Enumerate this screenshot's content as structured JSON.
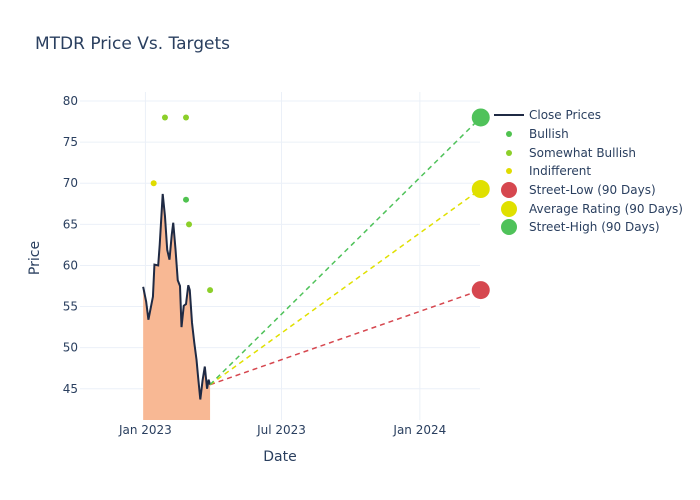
{
  "chart_data": {
    "type": "line",
    "title": "MTDR Price Vs. Targets",
    "xlabel": "Date",
    "ylabel": "Price",
    "ylim": [
      41.2,
      81.1
    ],
    "xlim": [
      "2022-10-06",
      "2024-03-21"
    ],
    "yticks": [
      45,
      50,
      55,
      60,
      65,
      70,
      75,
      80
    ],
    "xticks": [
      {
        "date": "2023-01-01",
        "label": "Jan 2023"
      },
      {
        "date": "2023-07-01",
        "label": "Jul 2023"
      },
      {
        "date": "2024-01-01",
        "label": "Jan 2024"
      }
    ],
    "close_prices": {
      "name": "Close Prices",
      "color": "#1f2a44",
      "fill": "#f8b894",
      "dates": [
        "2022-12-29",
        "2023-01-02",
        "2023-01-05",
        "2023-01-11",
        "2023-01-13",
        "2023-01-18",
        "2023-01-20",
        "2023-01-24",
        "2023-01-27",
        "2023-01-30",
        "2023-02-02",
        "2023-02-05",
        "2023-02-07",
        "2023-02-10",
        "2023-02-13",
        "2023-02-16",
        "2023-02-18",
        "2023-02-21",
        "2023-02-24",
        "2023-02-27",
        "2023-03-01",
        "2023-03-04",
        "2023-03-07",
        "2023-03-10",
        "2023-03-12",
        "2023-03-15",
        "2023-03-18",
        "2023-03-21",
        "2023-03-24",
        "2023-03-26",
        "2023-03-28"
      ],
      "values": [
        57.4,
        55.6,
        53.4,
        56.2,
        60.1,
        60.0,
        62.5,
        68.7,
        66.0,
        61.9,
        60.7,
        63.7,
        65.2,
        62.0,
        58.2,
        57.5,
        52.5,
        55.1,
        55.3,
        57.6,
        57.0,
        53.0,
        50.6,
        48.5,
        46.5,
        43.7,
        46.0,
        47.7,
        45.0,
        46.1,
        45.5
      ]
    },
    "ratings": [
      {
        "name": "Bullish",
        "color": "#4fc24f",
        "points": [
          {
            "date": "2023-02-24",
            "value": 68
          }
        ]
      },
      {
        "name": "Somewhat Bullish",
        "color": "#8ccf2a",
        "points": [
          {
            "date": "2023-01-27",
            "value": 78
          },
          {
            "date": "2023-02-24",
            "value": 78
          },
          {
            "date": "2023-02-28",
            "value": 65
          },
          {
            "date": "2023-03-28",
            "value": 57
          }
        ]
      },
      {
        "name": "Indifferent",
        "color": "#e0dc00",
        "points": [
          {
            "date": "2023-01-12",
            "value": 70
          }
        ]
      }
    ],
    "targets": [
      {
        "name": "Street-Low (90 Days)",
        "color": "#d6474f",
        "date": "2024-03-22",
        "value": 57
      },
      {
        "name": "Average Rating (90 Days)",
        "color": "#e0e000",
        "date": "2024-03-22",
        "value": 69.3
      },
      {
        "name": "Street-High (90 Days)",
        "color": "#4fc25a",
        "date": "2024-03-22",
        "value": 78
      }
    ]
  }
}
